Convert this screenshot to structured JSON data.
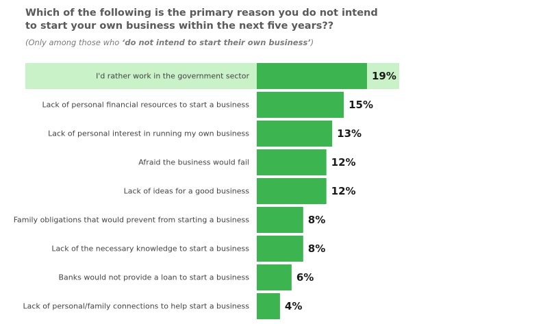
{
  "chart_data": {
    "type": "bar",
    "orientation": "horizontal",
    "title": "Which of the following is the primary reason you do not intend to start your own business within the next five years??",
    "subtitle_prefix": "(Only among those who ",
    "subtitle_emphasis": "‘do not intend to start their own business’",
    "subtitle_suffix": ")",
    "categories": [
      "I'd rather work in the government sector",
      "Lack of personal financial resources to start a business",
      "Lack of personal interest in running my own business",
      "Afraid the business would fail",
      "Lack of ideas for a good business",
      "Family obligations that would prevent from starting a business",
      "Lack of the necessary knowledge to start a business",
      "Banks would not provide a loan to start a business",
      "Lack of personal/family connections to help start a business"
    ],
    "values": [
      19,
      15,
      13,
      12,
      12,
      8,
      8,
      6,
      4
    ],
    "value_labels": [
      "19%",
      "15%",
      "13%",
      "12%",
      "12%",
      "8%",
      "8%",
      "6%",
      "4%"
    ],
    "unit": "%",
    "highlighted_index": 0,
    "colors": {
      "bar": "#3cb550",
      "highlight": "#c9f2c9"
    },
    "grid": false,
    "legend": "none"
  }
}
